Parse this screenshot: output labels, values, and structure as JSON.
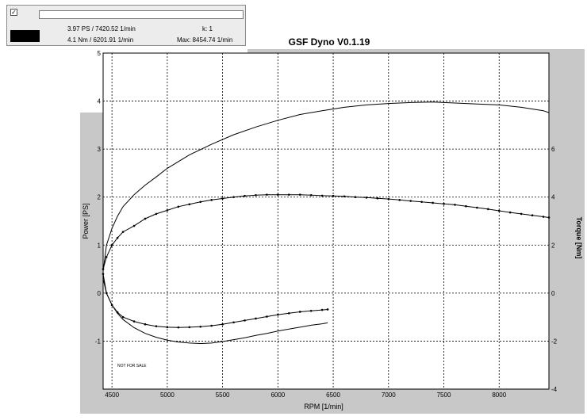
{
  "legend": {
    "checkbox_mark": "✓",
    "entry_name": "",
    "power_readout": "3.97 PS / 7420.52 1/min",
    "k_readout": "k: 1",
    "torque_readout": "4.1 Nm / 6201.91 1/min",
    "max_readout": "Max: 8454.74 1/min",
    "swatch_color": "#000000"
  },
  "chart_data": {
    "type": "line",
    "title": "GSF Dyno V0.1.19",
    "xlabel": "RPM [1/min]",
    "ylabel": "Power [PS]",
    "y2label": "Torque [Nm]",
    "watermark": "NOT FOR SALE",
    "xlim": [
      4420,
      8450
    ],
    "ylim": [
      -2,
      5
    ],
    "y2lim": [
      -4,
      10
    ],
    "x_ticks": [
      4500,
      5000,
      5500,
      6000,
      6500,
      7000,
      7500,
      8000
    ],
    "y_ticks": [
      -1,
      0,
      1,
      2,
      3,
      4,
      5
    ],
    "y2_ticks": [
      -4,
      -2,
      0,
      2,
      4,
      6
    ],
    "grid": true,
    "background_color": "#c8c8c8",
    "plot_color": "#ffffff",
    "line_color": "#000000",
    "series": [
      {
        "name": "",
        "axis": "y2",
        "markers": true,
        "x": [
          4420,
          4450,
          4500,
          4550,
          4600,
          4700,
          4800,
          4900,
          5000,
          5100,
          5200,
          5300,
          5400,
          5500,
          5600,
          5700,
          5800,
          5900,
          6000,
          6100,
          6200,
          6300,
          6400,
          6500,
          6600,
          6700,
          6800,
          6900,
          7000,
          7100,
          7200,
          7300,
          7400,
          7500,
          7600,
          7700,
          7800,
          7900,
          8000,
          8100,
          8200,
          8300,
          8400,
          8450
        ],
        "y": [
          1.0,
          1.5,
          2.0,
          2.3,
          2.55,
          2.8,
          3.1,
          3.3,
          3.45,
          3.6,
          3.7,
          3.8,
          3.88,
          3.94,
          4.0,
          4.05,
          4.08,
          4.1,
          4.1,
          4.1,
          4.1,
          4.08,
          4.06,
          4.05,
          4.03,
          4.0,
          3.98,
          3.95,
          3.92,
          3.88,
          3.84,
          3.8,
          3.76,
          3.72,
          3.68,
          3.62,
          3.56,
          3.5,
          3.43,
          3.36,
          3.3,
          3.24,
          3.18,
          3.15
        ]
      },
      {
        "name": "",
        "axis": "y",
        "markers": false,
        "x": [
          4420,
          4450,
          4500,
          4550,
          4600,
          4700,
          4800,
          4900,
          5000,
          5200,
          5400,
          5600,
          5800,
          6000,
          6200,
          6400,
          6600,
          6800,
          7000,
          7200,
          7400,
          7500,
          7600,
          7800,
          8000,
          8200,
          8400,
          8450
        ],
        "y": [
          0.45,
          1.0,
          1.35,
          1.6,
          1.8,
          2.05,
          2.25,
          2.42,
          2.6,
          2.88,
          3.1,
          3.3,
          3.46,
          3.6,
          3.72,
          3.8,
          3.87,
          3.92,
          3.95,
          3.97,
          3.98,
          3.97,
          3.96,
          3.94,
          3.92,
          3.87,
          3.8,
          3.76
        ]
      },
      {
        "name": "",
        "axis": "y2",
        "markers": true,
        "x": [
          4420,
          4450,
          4500,
          4550,
          4600,
          4700,
          4800,
          4900,
          5000,
          5100,
          5200,
          5300,
          5400,
          5500,
          5600,
          5700,
          5800,
          5900,
          6000,
          6100,
          6200,
          6300,
          6400,
          6450
        ],
        "y": [
          0.8,
          0.0,
          -0.5,
          -0.8,
          -1.0,
          -1.18,
          -1.3,
          -1.38,
          -1.42,
          -1.43,
          -1.42,
          -1.4,
          -1.36,
          -1.3,
          -1.22,
          -1.14,
          -1.06,
          -0.98,
          -0.9,
          -0.84,
          -0.78,
          -0.74,
          -0.7,
          -0.68
        ]
      },
      {
        "name": "",
        "axis": "y",
        "markers": false,
        "x": [
          4420,
          4450,
          4500,
          4550,
          4600,
          4700,
          4800,
          4900,
          5000,
          5100,
          5200,
          5300,
          5400,
          5500,
          5600,
          5700,
          5800,
          5900,
          6000,
          6100,
          6200,
          6300,
          6400,
          6450
        ],
        "y": [
          0.3,
          0.0,
          -0.25,
          -0.42,
          -0.55,
          -0.72,
          -0.84,
          -0.92,
          -0.98,
          -1.02,
          -1.04,
          -1.05,
          -1.04,
          -1.01,
          -0.97,
          -0.93,
          -0.88,
          -0.84,
          -0.79,
          -0.75,
          -0.71,
          -0.67,
          -0.64,
          -0.62
        ]
      }
    ]
  }
}
